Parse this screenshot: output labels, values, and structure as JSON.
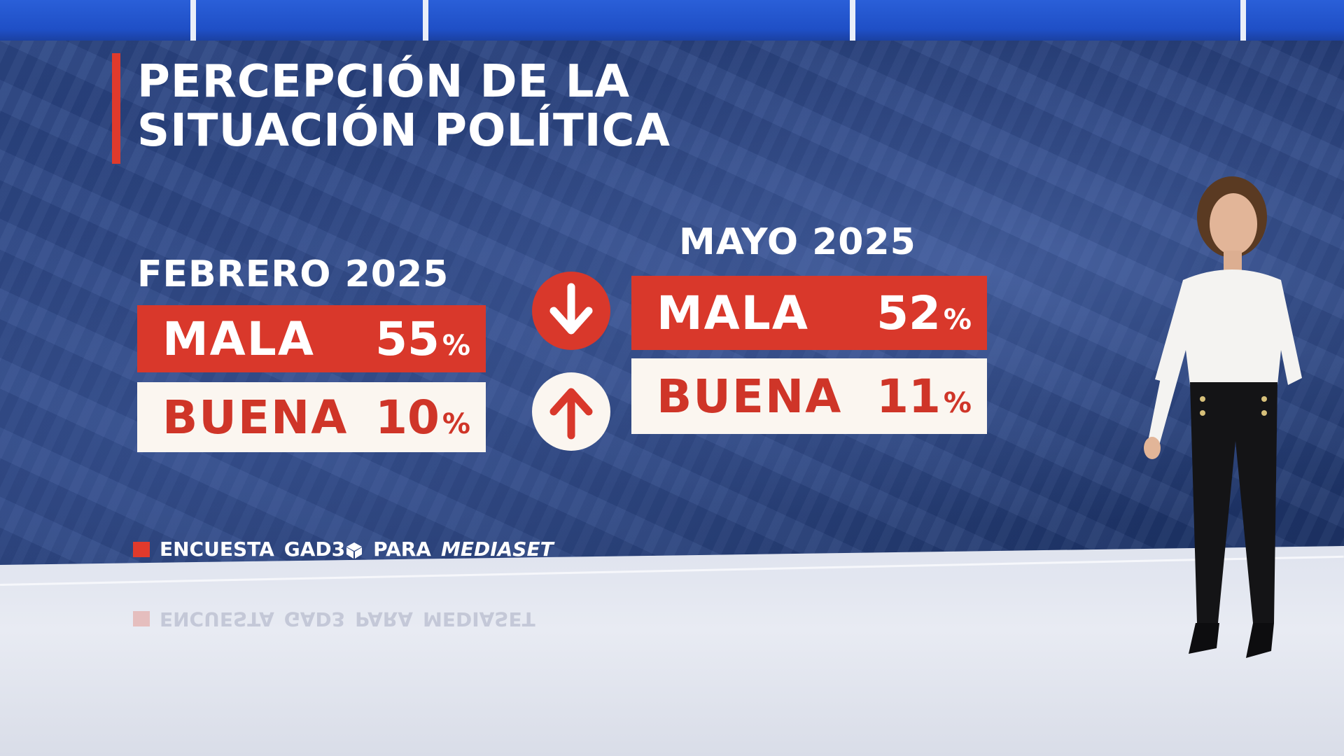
{
  "title": {
    "line1": "PERCEPCIÓN DE LA",
    "line2": "SITUACIÓN POLÍTICA"
  },
  "periods": {
    "before": {
      "label": "FEBRERO 2025",
      "mala": {
        "label": "MALA",
        "value": "55",
        "unit": "%"
      },
      "buena": {
        "label": "BUENA",
        "value": "10",
        "unit": "%"
      }
    },
    "after": {
      "label": "MAYO 2025",
      "mala": {
        "label": "MALA",
        "value": "52",
        "unit": "%"
      },
      "buena": {
        "label": "BUENA",
        "value": "11",
        "unit": "%"
      }
    }
  },
  "trend_icons": {
    "mala": "arrow-down-icon",
    "buena": "arrow-up-icon"
  },
  "source": {
    "prefix": "ENCUESTA",
    "brand": "GAD3",
    "connector": "PARA",
    "outlet": "MEDIASET"
  },
  "colors": {
    "accent_red": "#d9382b",
    "box_white": "#fbf6f0",
    "wall_blue": "#243c78"
  }
}
